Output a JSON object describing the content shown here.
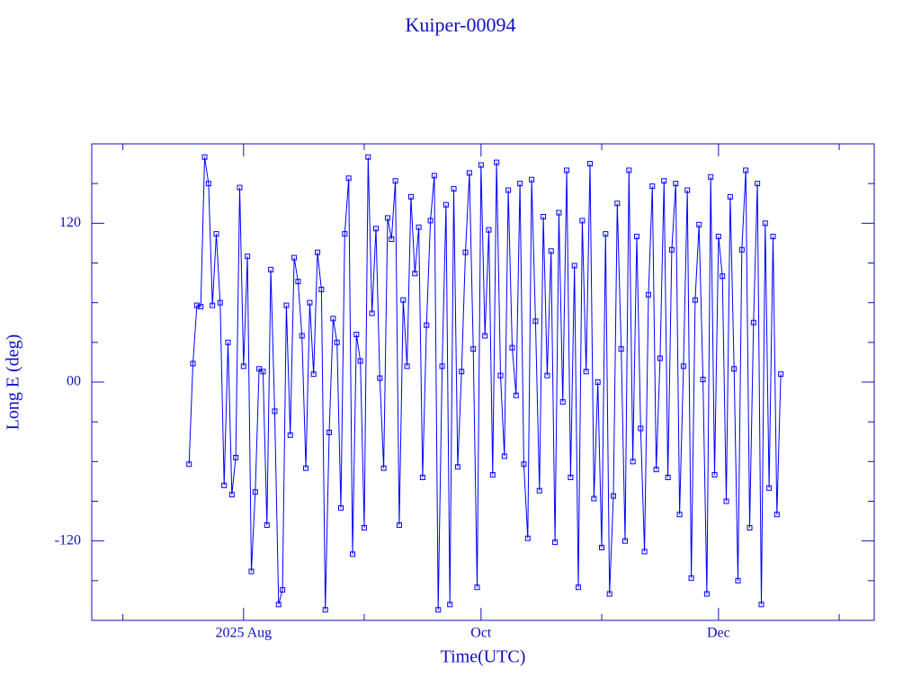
{
  "chart_data": {
    "type": "line",
    "title": "Kuiper-00094",
    "xlabel": "Time(UTC)",
    "ylabel": "Long E (deg)",
    "color": "#0000ff",
    "markers": true,
    "xlim": [
      -39,
      162
    ],
    "xticks": [
      {
        "value": 0,
        "label": "2025 Aug"
      },
      {
        "value": 61,
        "label": "Oct"
      },
      {
        "value": 122,
        "label": "Dec"
      }
    ],
    "xminorticks": [
      -31,
      31,
      92,
      153
    ],
    "ylim": [
      -180,
      180
    ],
    "yticks": [
      -120,
      {
        "value": 0,
        "label": "00"
      },
      120
    ],
    "yminorticks": [
      -150,
      -90,
      -60,
      -30,
      30,
      60,
      90,
      150
    ],
    "x": [
      -14,
      -13,
      -12,
      -11,
      -10,
      -9,
      -8,
      -7,
      -6,
      -5,
      -4,
      -3,
      -2,
      -1,
      0,
      1,
      2,
      3,
      4,
      5,
      6,
      7,
      8,
      9,
      10,
      11,
      12,
      13,
      14,
      15,
      16,
      17,
      18,
      19,
      20,
      21,
      22,
      23,
      24,
      25,
      26,
      27,
      28,
      29,
      30,
      31,
      32,
      33,
      34,
      35,
      36,
      37,
      38,
      39,
      40,
      41,
      42,
      43,
      44,
      45,
      46,
      47,
      48,
      49,
      50,
      51,
      52,
      53,
      54,
      55,
      56,
      57,
      58,
      59,
      60,
      61,
      62,
      63,
      64,
      65,
      66,
      67,
      68,
      69,
      70,
      71,
      72,
      73,
      74,
      75,
      76,
      77,
      78,
      79,
      80,
      81,
      82,
      83,
      84,
      85,
      86,
      87,
      88,
      89,
      90,
      91,
      92,
      93,
      94,
      95,
      96,
      97,
      98,
      99,
      100,
      101,
      102,
      103,
      104,
      105,
      106,
      107,
      108,
      109,
      110,
      111,
      112,
      113,
      114,
      115,
      116,
      117,
      118,
      119,
      120,
      121,
      122,
      123,
      124,
      125,
      126,
      127,
      128,
      129,
      130,
      131,
      132,
      133,
      134,
      135,
      136,
      137,
      138
    ],
    "values": [
      -62,
      14,
      58,
      57,
      170,
      150,
      58,
      112,
      60,
      -78,
      30,
      -85,
      -57,
      147,
      12,
      95,
      -143,
      -83,
      10,
      8,
      -108,
      85,
      -22,
      -168,
      -157,
      58,
      -40,
      94,
      76,
      35,
      -65,
      60,
      6,
      98,
      70,
      -172,
      -38,
      48,
      30,
      -95,
      112,
      154,
      -130,
      36,
      16,
      -110,
      170,
      52,
      116,
      3,
      -65,
      124,
      108,
      152,
      -108,
      62,
      12,
      140,
      82,
      117,
      -72,
      43,
      122,
      156,
      -172,
      12,
      134,
      -168,
      146,
      -64,
      8,
      98,
      158,
      25,
      -155,
      164,
      35,
      115,
      -70,
      166,
      5,
      -56,
      145,
      26,
      -10,
      150,
      -62,
      -118,
      153,
      46,
      -82,
      125,
      5,
      99,
      -121,
      128,
      -15,
      160,
      -72,
      88,
      -155,
      122,
      8,
      165,
      -88,
      0,
      -125,
      112,
      -160,
      -86,
      135,
      25,
      -120,
      160,
      -60,
      110,
      -35,
      -128,
      66,
      148,
      -66,
      18,
      152,
      -72,
      100,
      150,
      -100,
      12,
      145,
      -148,
      62,
      119,
      2,
      -160,
      155,
      -70,
      110,
      80,
      -90,
      140,
      10,
      -150,
      100,
      160,
      -110,
      45,
      150,
      -168,
      120,
      -80,
      110,
      -100,
      6
    ]
  }
}
